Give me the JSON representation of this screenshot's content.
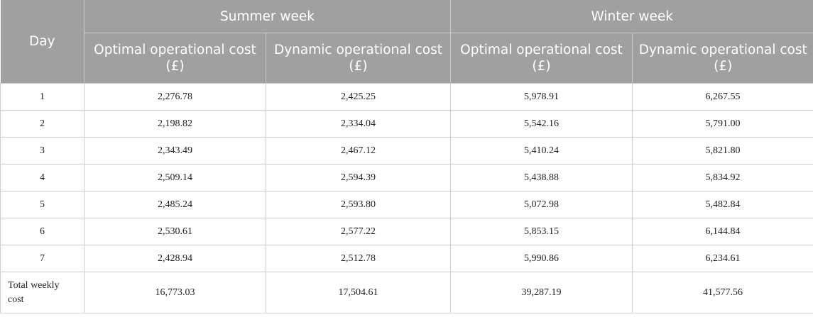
{
  "header": {
    "day": "Day",
    "summer_week": "Summer week",
    "winter_week": "Winter week",
    "optimal_cost": "Optimal operational cost (£)",
    "dynamic_cost": "Dynamic operational cost (£)"
  },
  "rows": [
    {
      "day": "1",
      "summer_optimal": "2,276.78",
      "summer_dynamic": "2,425.25",
      "winter_optimal": "5,978.91",
      "winter_dynamic": "6,267.55"
    },
    {
      "day": "2",
      "summer_optimal": "2,198.82",
      "summer_dynamic": "2,334.04",
      "winter_optimal": "5,542.16",
      "winter_dynamic": "5,791.00"
    },
    {
      "day": "3",
      "summer_optimal": "2,343.49",
      "summer_dynamic": "2,467.12",
      "winter_optimal": "5,410.24",
      "winter_dynamic": "5,821.80"
    },
    {
      "day": "4",
      "summer_optimal": "2,509.14",
      "summer_dynamic": "2,594.39",
      "winter_optimal": "5,438.88",
      "winter_dynamic": "5,834.92"
    },
    {
      "day": "5",
      "summer_optimal": "2,485.24",
      "summer_dynamic": "2,593.80",
      "winter_optimal": "5,072.98",
      "winter_dynamic": "5,482.84"
    },
    {
      "day": "6",
      "summer_optimal": "2,530.61",
      "summer_dynamic": "2,577.22",
      "winter_optimal": "5,853.15",
      "winter_dynamic": "6,144.84"
    },
    {
      "day": "7",
      "summer_optimal": "2,428.94",
      "summer_dynamic": "2,512.78",
      "winter_optimal": "5,990.86",
      "winter_dynamic": "6,234.61"
    }
  ],
  "total": {
    "label": "Total weekly cost",
    "summer_optimal": "16,773.03",
    "summer_dynamic": "17,504.61",
    "winter_optimal": "39,287.19",
    "winter_dynamic": "41,577.56"
  }
}
